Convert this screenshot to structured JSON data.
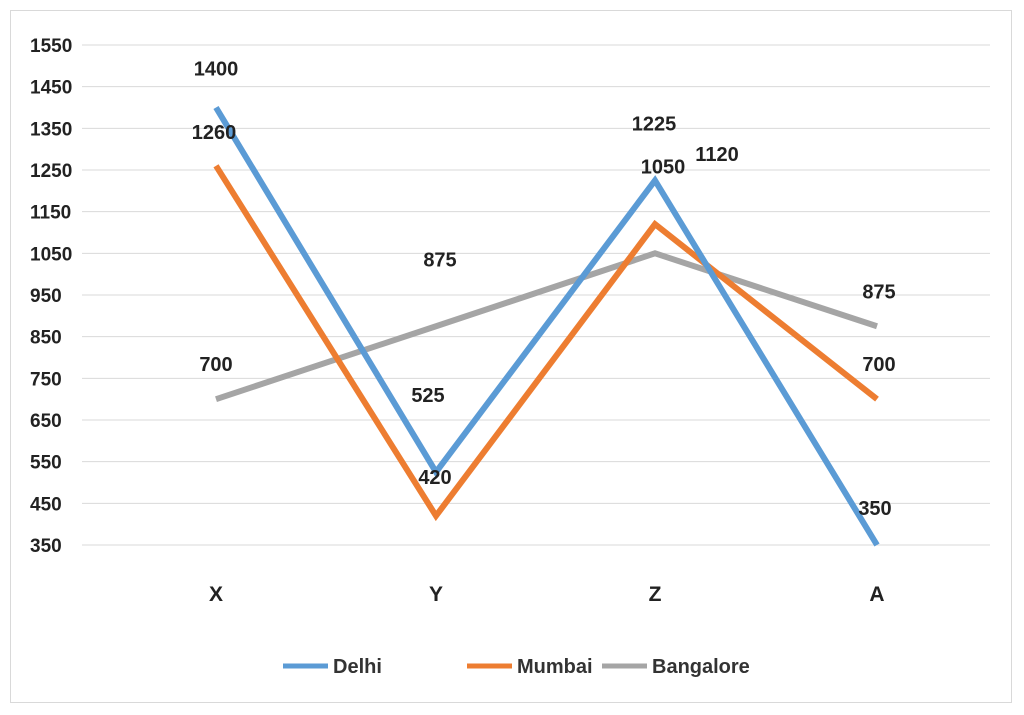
{
  "chart_data": {
    "type": "line",
    "title": "",
    "xlabel": "",
    "ylabel": "",
    "categories": [
      "X",
      "Y",
      "Z",
      "A"
    ],
    "ylim": [
      350,
      1550
    ],
    "yticks": [
      350,
      450,
      550,
      650,
      750,
      850,
      950,
      1050,
      1150,
      1250,
      1350,
      1450,
      1550
    ],
    "grid": true,
    "legend_position": "bottom",
    "series": [
      {
        "name": "Delhi",
        "values": [
          1400,
          525,
          1225,
          350
        ],
        "color": "#5b9bd5"
      },
      {
        "name": "Mumbai",
        "values": [
          1260,
          420,
          1120,
          700
        ],
        "color": "#ed7d31"
      },
      {
        "name": "Bangalore",
        "values": [
          700,
          875,
          1050,
          875
        ],
        "color": "#a5a5a5"
      }
    ]
  }
}
